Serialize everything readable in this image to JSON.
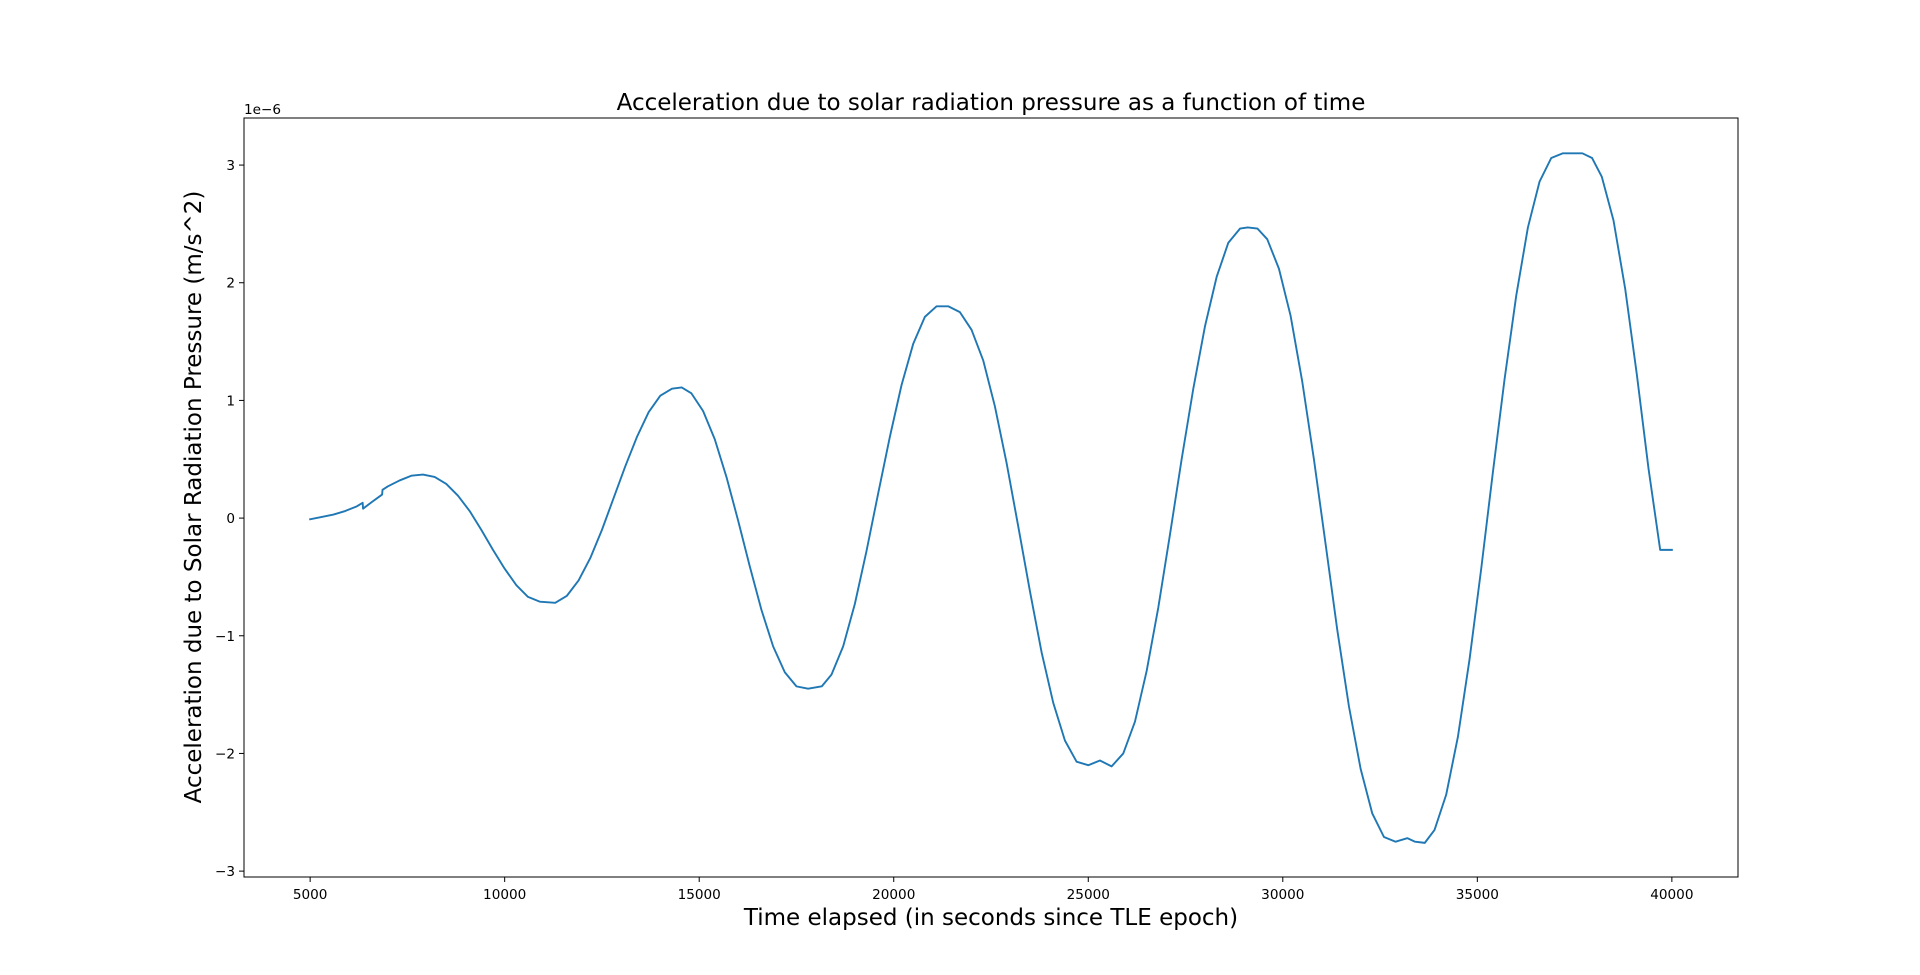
{
  "chart_data": {
    "type": "line",
    "title": "Acceleration due to solar radiation pressure as a function of time",
    "xlabel": "Time elapsed (in seconds since TLE epoch)",
    "ylabel": "Acceleration due to Solar Radiation Pressure (m/s^2)",
    "y_offset_label": "1e−6",
    "xlim": [
      3300,
      41700
    ],
    "ylim": [
      -3.05e-06,
      3.4e-06
    ],
    "xticks": [
      5000,
      10000,
      15000,
      20000,
      25000,
      30000,
      35000,
      40000
    ],
    "xtick_labels": [
      "5000",
      "10000",
      "15000",
      "20000",
      "25000",
      "30000",
      "35000",
      "40000"
    ],
    "yticks": [
      -3e-06,
      -2e-06,
      -1e-06,
      0,
      1e-06,
      2e-06,
      3e-06
    ],
    "ytick_labels": [
      "−3",
      "−2",
      "−1",
      "0",
      "1",
      "2",
      "3"
    ],
    "grid": false,
    "line_color": "#1f77b4",
    "series": [
      {
        "x": [
          5000,
          5300,
          5600,
          5900,
          6200,
          6350,
          6360,
          6600,
          6850,
          6860,
          7000,
          7300,
          7600,
          7900,
          8200,
          8500,
          8800,
          9100,
          9400,
          9700,
          10000,
          10300,
          10600,
          10900,
          11300,
          11600,
          11900,
          12200,
          12500,
          12800,
          13100,
          13400,
          13700,
          14000,
          14300,
          14550,
          14800,
          15100,
          15400,
          15700,
          16000,
          16300,
          16600,
          16900,
          17200,
          17500,
          17800,
          18150,
          18400,
          18700,
          19000,
          19300,
          19600,
          19900,
          20200,
          20500,
          20800,
          21100,
          21400,
          21700,
          22000,
          22300,
          22600,
          22900,
          23200,
          23500,
          23800,
          24100,
          24400,
          24700,
          25000,
          25300,
          25600,
          25900,
          26200,
          26500,
          26800,
          27100,
          27400,
          27700,
          28000,
          28300,
          28600,
          28900,
          29100,
          29350,
          29600,
          29900,
          30200,
          30500,
          30800,
          31100,
          31400,
          31700,
          32000,
          32300,
          32600,
          32900,
          33200,
          33400,
          33650,
          33900,
          34200,
          34500,
          34800,
          35100,
          35400,
          35700,
          36000,
          36300,
          36600,
          36900,
          37200,
          37450,
          37700,
          37950,
          38200,
          38500,
          38800,
          39100,
          39400,
          39700,
          40000
        ],
        "y": [
          -1e-08,
          1e-08,
          3e-08,
          6e-08,
          1e-07,
          1.3e-07,
          8e-08,
          1.4e-07,
          2e-07,
          2.4e-07,
          2.7e-07,
          3.2e-07,
          3.6e-07,
          3.7e-07,
          3.5e-07,
          2.9e-07,
          1.9e-07,
          6e-08,
          -1e-07,
          -2.7e-07,
          -4.3e-07,
          -5.7e-07,
          -6.7e-07,
          -7.1e-07,
          -7.2e-07,
          -6.6e-07,
          -5.3e-07,
          -3.4e-07,
          -1e-07,
          1.7e-07,
          4.4e-07,
          6.9e-07,
          9e-07,
          1.04e-06,
          1.1e-06,
          1.11e-06,
          1.06e-06,
          9.1e-07,
          6.7e-07,
          3.5e-07,
          -2e-08,
          -4.1e-07,
          -7.8e-07,
          -1.09e-06,
          -1.31e-06,
          -1.43e-06,
          -1.45e-06,
          -1.43e-06,
          -1.33e-06,
          -1.09e-06,
          -7.3e-07,
          -2.8e-07,
          2.1e-07,
          6.9e-07,
          1.13e-06,
          1.48e-06,
          1.71e-06,
          1.8e-06,
          1.8e-06,
          1.75e-06,
          1.6e-06,
          1.34e-06,
          9.5e-07,
          4.7e-07,
          -7e-08,
          -6.2e-07,
          -1.14e-06,
          -1.57e-06,
          -1.89e-06,
          -2.07e-06,
          -2.1e-06,
          -2.06e-06,
          -2.11e-06,
          -2e-06,
          -1.73e-06,
          -1.3e-06,
          -7.6e-07,
          -1.4e-07,
          5e-07,
          1.1e-06,
          1.63e-06,
          2.05e-06,
          2.34e-06,
          2.46e-06,
          2.47e-06,
          2.46e-06,
          2.37e-06,
          2.12e-06,
          1.72e-06,
          1.16e-06,
          5e-07,
          -2.2e-07,
          -9.5e-07,
          -1.6e-06,
          -2.13e-06,
          -2.51e-06,
          -2.71e-06,
          -2.75e-06,
          -2.72e-06,
          -2.75e-06,
          -2.76e-06,
          -2.65e-06,
          -2.35e-06,
          -1.86e-06,
          -1.2e-06,
          -4.3e-07,
          3.9e-07,
          1.18e-06,
          1.89e-06,
          2.47e-06,
          2.86e-06,
          3.06e-06,
          3.1e-06,
          3.1e-06,
          3.1e-06,
          3.06e-06,
          2.9e-06,
          2.53e-06,
          1.95e-06,
          1.22e-06,
          4.2e-07,
          -2.7e-07,
          -2.7e-07
        ]
      }
    ]
  }
}
